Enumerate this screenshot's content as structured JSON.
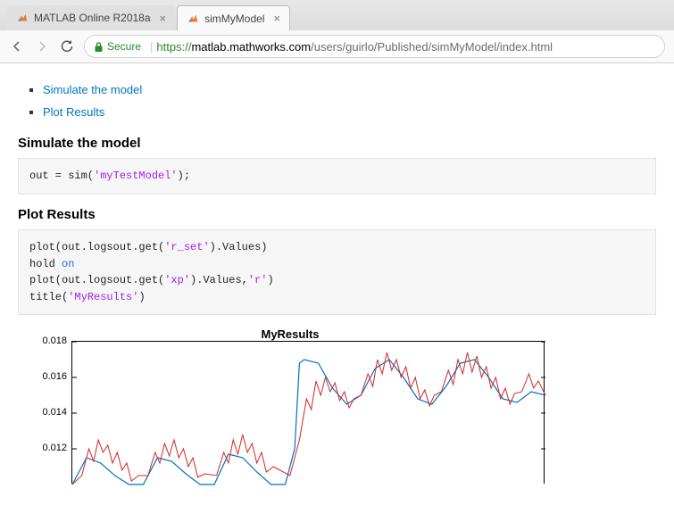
{
  "tabs": {
    "inactive_label": "MATLAB Online R2018a",
    "active_label": "simMyModel"
  },
  "url": {
    "secure_label": "Secure",
    "protocol": "https://",
    "host": "matlab.mathworks.com",
    "path": "/users/guirlo/Published/simMyModel/index.html"
  },
  "toc": {
    "item1": "Simulate the model",
    "item2": "Plot Results"
  },
  "sections": {
    "sim_heading": "Simulate the model",
    "plot_heading": "Plot Results"
  },
  "code": {
    "sim_pre": "out = sim(",
    "sim_str": "'myTestModel'",
    "sim_post": ");",
    "plot_l1a": "plot(out.logsout.get(",
    "plot_l1s": "'r_set'",
    "plot_l1b": ").Values)",
    "plot_l2a": "hold ",
    "plot_l2k": "on",
    "plot_l3a": "plot(out.logsout.get(",
    "plot_l3s1": "'xp'",
    "plot_l3b": ").Values,",
    "plot_l3s2": "'r'",
    "plot_l3c": ")",
    "plot_l4a": "title(",
    "plot_l4s": "'MyResults'",
    "plot_l4b": ")"
  },
  "chart": {
    "type": "line",
    "title": "MyResults",
    "title_fontsize": 13,
    "label_fontsize": 11,
    "background_color": "#ffffff",
    "border_color": "#000000",
    "ylim": [
      0.01,
      0.018
    ],
    "ytick_labels": [
      "0.018",
      "0.016",
      "0.014",
      "0.012"
    ],
    "ytick_values": [
      0.018,
      0.016,
      0.014,
      0.012
    ],
    "xlim": [
      0,
      10
    ],
    "series": [
      {
        "name": "r_set",
        "color": "#0072bd",
        "line_width": 1.2,
        "marker": "none",
        "data": [
          [
            0,
            0.01
          ],
          [
            0.3,
            0.0115
          ],
          [
            0.6,
            0.0112
          ],
          [
            0.9,
            0.0105
          ],
          [
            1.2,
            0.01
          ],
          [
            1.5,
            0.01
          ],
          [
            1.8,
            0.0115
          ],
          [
            2.1,
            0.0113
          ],
          [
            2.4,
            0.0106
          ],
          [
            2.7,
            0.01
          ],
          [
            3.0,
            0.01
          ],
          [
            3.3,
            0.0117
          ],
          [
            3.6,
            0.0115
          ],
          [
            3.9,
            0.0107
          ],
          [
            4.2,
            0.01
          ],
          [
            4.5,
            0.01
          ],
          [
            4.7,
            0.012
          ],
          [
            4.8,
            0.0168
          ],
          [
            4.9,
            0.017
          ],
          [
            5.2,
            0.0168
          ],
          [
            5.5,
            0.0154
          ],
          [
            5.8,
            0.0145
          ],
          [
            6.1,
            0.015
          ],
          [
            6.4,
            0.0165
          ],
          [
            6.7,
            0.017
          ],
          [
            7.0,
            0.016
          ],
          [
            7.3,
            0.0148
          ],
          [
            7.6,
            0.0145
          ],
          [
            7.9,
            0.0155
          ],
          [
            8.2,
            0.0168
          ],
          [
            8.5,
            0.017
          ],
          [
            8.8,
            0.016
          ],
          [
            9.1,
            0.0148
          ],
          [
            9.4,
            0.0146
          ],
          [
            9.7,
            0.0152
          ],
          [
            10,
            0.015
          ]
        ]
      },
      {
        "name": "xp",
        "color": "#d62728",
        "line_width": 1.0,
        "marker": "none",
        "data": [
          [
            0,
            0.01
          ],
          [
            0.2,
            0.0105
          ],
          [
            0.35,
            0.012
          ],
          [
            0.45,
            0.0113
          ],
          [
            0.55,
            0.0125
          ],
          [
            0.65,
            0.0118
          ],
          [
            0.75,
            0.0122
          ],
          [
            0.85,
            0.0112
          ],
          [
            0.95,
            0.0118
          ],
          [
            1.05,
            0.0108
          ],
          [
            1.15,
            0.0112
          ],
          [
            1.25,
            0.0102
          ],
          [
            1.4,
            0.0105
          ],
          [
            1.6,
            0.0105
          ],
          [
            1.75,
            0.0118
          ],
          [
            1.85,
            0.0112
          ],
          [
            1.95,
            0.0123
          ],
          [
            2.05,
            0.0116
          ],
          [
            2.15,
            0.0125
          ],
          [
            2.25,
            0.0115
          ],
          [
            2.35,
            0.012
          ],
          [
            2.45,
            0.011
          ],
          [
            2.55,
            0.0115
          ],
          [
            2.65,
            0.0104
          ],
          [
            2.8,
            0.0106
          ],
          [
            3.05,
            0.0105
          ],
          [
            3.2,
            0.0118
          ],
          [
            3.3,
            0.0112
          ],
          [
            3.4,
            0.0125
          ],
          [
            3.5,
            0.0117
          ],
          [
            3.6,
            0.0128
          ],
          [
            3.7,
            0.0118
          ],
          [
            3.8,
            0.0123
          ],
          [
            3.9,
            0.0112
          ],
          [
            4.0,
            0.0118
          ],
          [
            4.1,
            0.0107
          ],
          [
            4.25,
            0.011
          ],
          [
            4.6,
            0.0105
          ],
          [
            4.8,
            0.0125
          ],
          [
            4.95,
            0.0148
          ],
          [
            5.05,
            0.0142
          ],
          [
            5.15,
            0.0158
          ],
          [
            5.25,
            0.015
          ],
          [
            5.35,
            0.016
          ],
          [
            5.45,
            0.0152
          ],
          [
            5.55,
            0.0157
          ],
          [
            5.65,
            0.0147
          ],
          [
            5.75,
            0.0152
          ],
          [
            5.85,
            0.0143
          ],
          [
            5.95,
            0.0148
          ],
          [
            6.1,
            0.015
          ],
          [
            6.25,
            0.0162
          ],
          [
            6.35,
            0.0155
          ],
          [
            6.45,
            0.017
          ],
          [
            6.55,
            0.0162
          ],
          [
            6.65,
            0.0174
          ],
          [
            6.75,
            0.0164
          ],
          [
            6.85,
            0.017
          ],
          [
            6.95,
            0.016
          ],
          [
            7.05,
            0.0166
          ],
          [
            7.15,
            0.0154
          ],
          [
            7.25,
            0.016
          ],
          [
            7.35,
            0.0148
          ],
          [
            7.45,
            0.0153
          ],
          [
            7.55,
            0.0144
          ],
          [
            7.65,
            0.015
          ],
          [
            7.8,
            0.0152
          ],
          [
            7.95,
            0.0164
          ],
          [
            8.05,
            0.0156
          ],
          [
            8.15,
            0.017
          ],
          [
            8.25,
            0.0162
          ],
          [
            8.35,
            0.0174
          ],
          [
            8.45,
            0.0163
          ],
          [
            8.55,
            0.0172
          ],
          [
            8.65,
            0.016
          ],
          [
            8.75,
            0.0166
          ],
          [
            8.85,
            0.0154
          ],
          [
            8.95,
            0.016
          ],
          [
            9.05,
            0.0148
          ],
          [
            9.15,
            0.0154
          ],
          [
            9.25,
            0.0145
          ],
          [
            9.35,
            0.0151
          ],
          [
            9.5,
            0.0152
          ],
          [
            9.65,
            0.0162
          ],
          [
            9.75,
            0.0154
          ],
          [
            9.85,
            0.0158
          ],
          [
            10,
            0.015
          ]
        ]
      }
    ]
  }
}
